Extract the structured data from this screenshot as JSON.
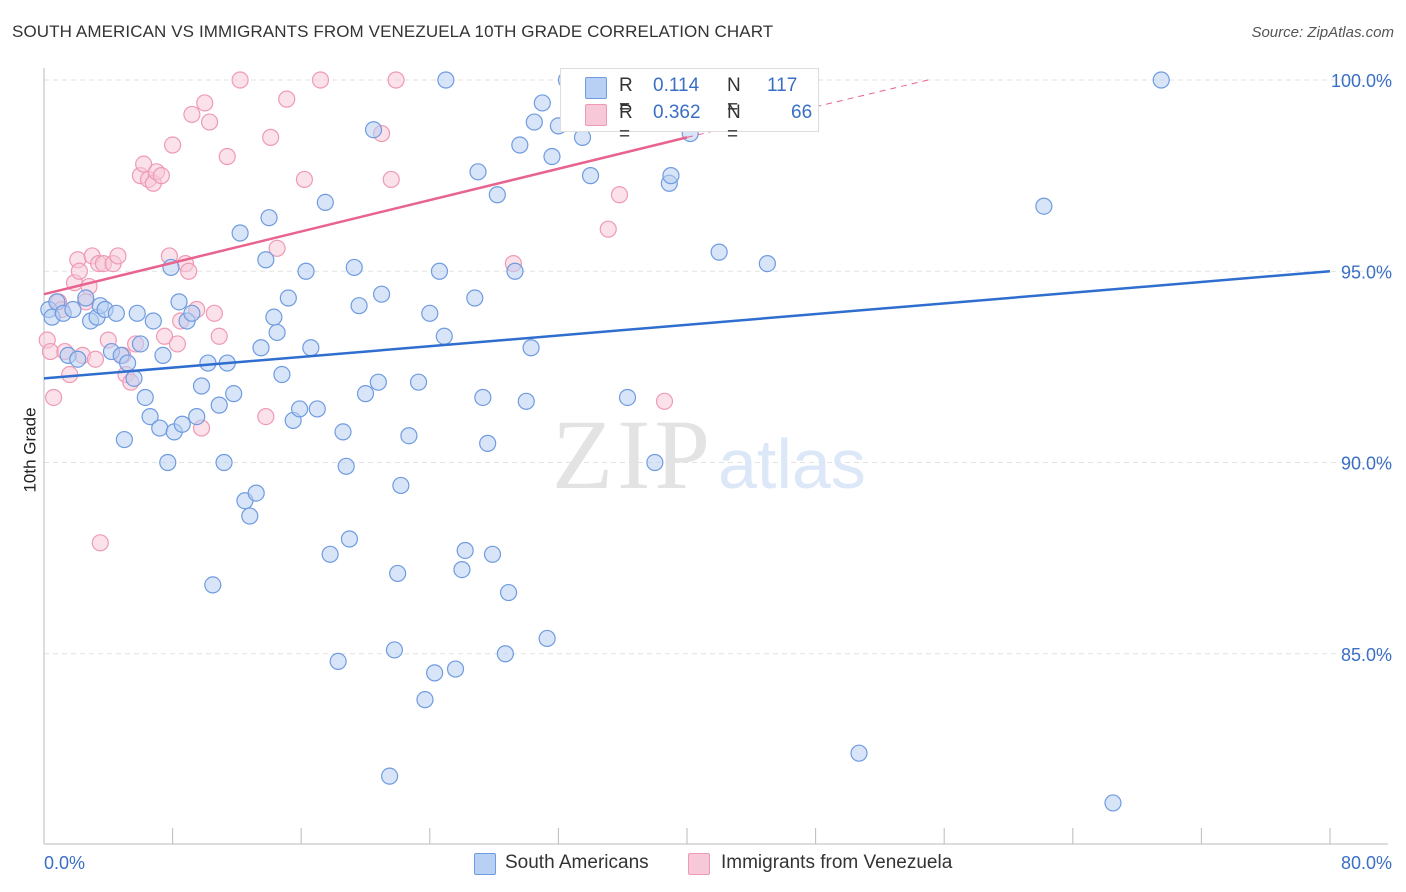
{
  "title": "SOUTH AMERICAN VS IMMIGRANTS FROM VENEZUELA 10TH GRADE CORRELATION CHART",
  "source": "Source: ZipAtlas.com",
  "watermark": {
    "zip": "ZIP",
    "atlas": "atlas"
  },
  "legend": {
    "r_label": "R =",
    "n_label": "N =",
    "series": [
      {
        "r": "0.114",
        "n": "117"
      },
      {
        "r": "0.362",
        "n": "66"
      }
    ]
  },
  "bottom_legend": [
    "South Americans",
    "Immigrants from Venezuela"
  ],
  "colors": {
    "blue_stroke": "#6f9be0",
    "blue_fill": "#b8d0f3",
    "blue_line": "#2f6ecf",
    "pink_stroke": "#ef9ab5",
    "pink_fill": "#f7c8d7",
    "pink_line": "#e8638e",
    "tick_label": "#3a6fc4"
  },
  "chart_data": {
    "type": "scatter",
    "title": "SOUTH AMERICAN VS IMMIGRANTS FROM VENEZUELA 10TH GRADE CORRELATION CHART",
    "xlabel": "",
    "ylabel": "10th Grade",
    "xlim": [
      0,
      80
    ],
    "ylim": [
      80,
      100.5
    ],
    "x_tick_labels": [
      "0.0%",
      "80.0%"
    ],
    "y_ticks": [
      85,
      90,
      95,
      100
    ],
    "y_tick_labels": [
      "85.0%",
      "90.0%",
      "95.0%",
      "100.0%"
    ],
    "grid": true,
    "legend_position": "top-center",
    "series": [
      {
        "name": "South Americans",
        "r": 0.114,
        "n": 117,
        "trend": {
          "x": [
            0,
            80
          ],
          "y": [
            92.2,
            95.0
          ]
        },
        "points": [
          [
            0.3,
            94.0
          ],
          [
            0.5,
            93.8
          ],
          [
            0.8,
            94.2
          ],
          [
            1.2,
            93.9
          ],
          [
            1.5,
            92.8
          ],
          [
            1.8,
            94.0
          ],
          [
            2.1,
            92.7
          ],
          [
            2.6,
            94.3
          ],
          [
            2.9,
            93.7
          ],
          [
            3.3,
            93.8
          ],
          [
            3.5,
            94.1
          ],
          [
            3.8,
            94.0
          ],
          [
            4.2,
            92.9
          ],
          [
            4.5,
            93.9
          ],
          [
            4.8,
            92.8
          ],
          [
            5.2,
            92.6
          ],
          [
            5.0,
            90.6
          ],
          [
            5.6,
            92.2
          ],
          [
            5.8,
            93.9
          ],
          [
            6.0,
            93.1
          ],
          [
            6.3,
            91.7
          ],
          [
            6.6,
            91.2
          ],
          [
            6.8,
            93.7
          ],
          [
            7.2,
            90.9
          ],
          [
            7.4,
            92.8
          ],
          [
            7.7,
            90.0
          ],
          [
            7.9,
            95.1
          ],
          [
            8.1,
            90.8
          ],
          [
            8.4,
            94.2
          ],
          [
            8.6,
            91.0
          ],
          [
            8.9,
            93.7
          ],
          [
            9.2,
            93.9
          ],
          [
            9.5,
            91.2
          ],
          [
            9.8,
            92.0
          ],
          [
            10.2,
            92.6
          ],
          [
            10.5,
            86.8
          ],
          [
            10.9,
            91.5
          ],
          [
            11.2,
            90.0
          ],
          [
            11.4,
            92.6
          ],
          [
            11.8,
            91.8
          ],
          [
            12.2,
            96.0
          ],
          [
            12.5,
            89.0
          ],
          [
            12.8,
            88.6
          ],
          [
            13.2,
            89.2
          ],
          [
            13.5,
            93.0
          ],
          [
            13.8,
            95.3
          ],
          [
            14.0,
            96.4
          ],
          [
            14.3,
            93.8
          ],
          [
            14.5,
            93.4
          ],
          [
            14.8,
            92.3
          ],
          [
            15.2,
            94.3
          ],
          [
            15.5,
            91.1
          ],
          [
            15.9,
            91.4
          ],
          [
            16.3,
            95.0
          ],
          [
            16.6,
            93.0
          ],
          [
            17.0,
            91.4
          ],
          [
            17.5,
            96.8
          ],
          [
            17.8,
            87.6
          ],
          [
            18.3,
            84.8
          ],
          [
            18.6,
            90.8
          ],
          [
            18.8,
            89.9
          ],
          [
            19.0,
            88.0
          ],
          [
            19.3,
            95.1
          ],
          [
            19.6,
            94.1
          ],
          [
            20.0,
            91.8
          ],
          [
            20.5,
            98.7
          ],
          [
            20.8,
            92.1
          ],
          [
            21.0,
            94.4
          ],
          [
            21.5,
            81.8
          ],
          [
            21.8,
            85.1
          ],
          [
            22.0,
            87.1
          ],
          [
            22.2,
            89.4
          ],
          [
            22.7,
            90.7
          ],
          [
            23.3,
            92.1
          ],
          [
            23.7,
            83.8
          ],
          [
            24.0,
            93.9
          ],
          [
            24.3,
            84.5
          ],
          [
            24.6,
            95.0
          ],
          [
            24.9,
            93.3
          ],
          [
            25.0,
            100.0
          ],
          [
            25.6,
            84.6
          ],
          [
            26.0,
            87.2
          ],
          [
            26.2,
            87.7
          ],
          [
            26.8,
            94.3
          ],
          [
            27.0,
            97.6
          ],
          [
            27.3,
            91.7
          ],
          [
            27.6,
            90.5
          ],
          [
            27.9,
            87.6
          ],
          [
            28.2,
            97.0
          ],
          [
            28.7,
            85.0
          ],
          [
            28.9,
            86.6
          ],
          [
            29.3,
            95.0
          ],
          [
            29.6,
            98.3
          ],
          [
            30.0,
            91.6
          ],
          [
            30.3,
            93.0
          ],
          [
            30.5,
            98.9
          ],
          [
            31.0,
            99.4
          ],
          [
            31.3,
            85.4
          ],
          [
            31.6,
            98.0
          ],
          [
            32.0,
            98.8
          ],
          [
            32.5,
            100.0
          ],
          [
            33.5,
            98.5
          ],
          [
            34.0,
            97.5
          ],
          [
            36.3,
            91.7
          ],
          [
            38.0,
            90.0
          ],
          [
            38.9,
            97.3
          ],
          [
            39.0,
            97.5
          ],
          [
            39.2,
            100.0
          ],
          [
            40.2,
            98.6
          ],
          [
            42.0,
            95.5
          ],
          [
            45.0,
            95.2
          ],
          [
            50.7,
            82.4
          ],
          [
            62.2,
            96.7
          ],
          [
            66.5,
            81.1
          ],
          [
            69.5,
            100.0
          ]
        ]
      },
      {
        "name": "Immigrants from Venezuela",
        "r": 0.362,
        "n": 66,
        "trend": {
          "x": [
            0,
            40
          ],
          "y": [
            94.4,
            98.5
          ]
        },
        "trend_dashed": {
          "x": [
            40,
            55
          ],
          "y": [
            98.5,
            100.0
          ]
        },
        "points": [
          [
            0.2,
            93.2
          ],
          [
            0.4,
            92.9
          ],
          [
            0.6,
            91.7
          ],
          [
            0.9,
            94.2
          ],
          [
            1.1,
            94.0
          ],
          [
            1.3,
            92.9
          ],
          [
            1.6,
            92.3
          ],
          [
            1.9,
            94.7
          ],
          [
            2.1,
            95.3
          ],
          [
            2.2,
            95.0
          ],
          [
            2.4,
            92.8
          ],
          [
            2.6,
            94.2
          ],
          [
            2.8,
            94.6
          ],
          [
            3.0,
            95.4
          ],
          [
            3.2,
            92.7
          ],
          [
            3.4,
            95.2
          ],
          [
            3.7,
            95.2
          ],
          [
            4.0,
            93.2
          ],
          [
            4.3,
            95.2
          ],
          [
            4.6,
            95.4
          ],
          [
            4.9,
            92.8
          ],
          [
            5.1,
            92.3
          ],
          [
            5.4,
            92.1
          ],
          [
            5.7,
            93.1
          ],
          [
            6.0,
            97.5
          ],
          [
            6.2,
            97.8
          ],
          [
            6.5,
            97.4
          ],
          [
            6.8,
            97.3
          ],
          [
            7.0,
            97.6
          ],
          [
            7.3,
            97.5
          ],
          [
            7.5,
            93.3
          ],
          [
            7.8,
            95.4
          ],
          [
            8.0,
            98.3
          ],
          [
            8.3,
            93.1
          ],
          [
            8.5,
            93.7
          ],
          [
            8.8,
            95.2
          ],
          [
            9.0,
            95.0
          ],
          [
            9.2,
            99.1
          ],
          [
            9.5,
            94.0
          ],
          [
            9.8,
            90.9
          ],
          [
            10.0,
            99.4
          ],
          [
            10.3,
            98.9
          ],
          [
            10.6,
            93.9
          ],
          [
            10.9,
            93.3
          ],
          [
            11.4,
            98.0
          ],
          [
            12.2,
            100.0
          ],
          [
            13.8,
            91.2
          ],
          [
            14.1,
            98.5
          ],
          [
            14.5,
            95.6
          ],
          [
            15.1,
            99.5
          ],
          [
            16.2,
            97.4
          ],
          [
            17.2,
            100.0
          ],
          [
            21.0,
            98.6
          ],
          [
            21.9,
            100.0
          ],
          [
            21.6,
            97.4
          ],
          [
            29.2,
            95.2
          ],
          [
            35.1,
            96.1
          ],
          [
            35.8,
            97.0
          ],
          [
            38.6,
            91.6
          ],
          [
            3.5,
            87.9
          ]
        ]
      }
    ]
  }
}
